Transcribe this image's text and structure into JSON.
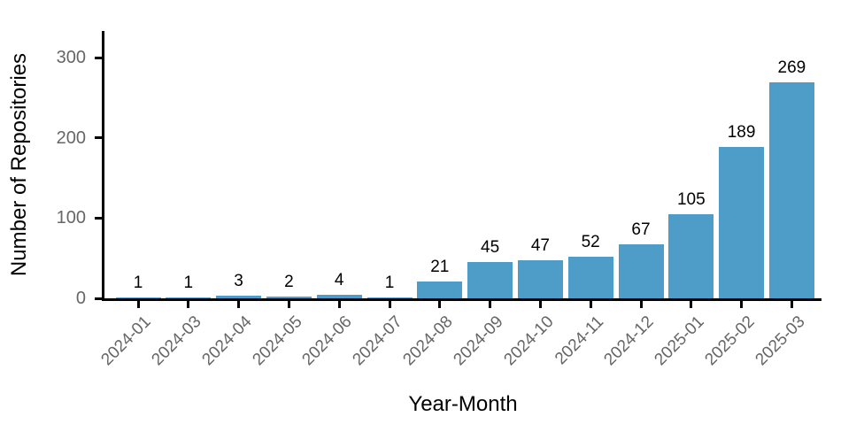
{
  "chart_data": {
    "type": "bar",
    "title": "",
    "xlabel": "Year-Month",
    "ylabel": "Number of Repositories",
    "categories": [
      "2024-01",
      "2024-03",
      "2024-04",
      "2024-05",
      "2024-06",
      "2024-07",
      "2024-08",
      "2024-09",
      "2024-10",
      "2024-11",
      "2024-12",
      "2025-01",
      "2025-02",
      "2025-03"
    ],
    "values": [
      1,
      1,
      3,
      2,
      4,
      1,
      21,
      45,
      47,
      52,
      67,
      105,
      189,
      269
    ],
    "value_labels": [
      "1",
      "1",
      "3",
      "2",
      "4",
      "1",
      "21",
      "45",
      "47",
      "52",
      "67",
      "105",
      "189",
      "269"
    ],
    "y_ticks": [
      0,
      100,
      200,
      300
    ],
    "y_tick_labels": [
      "0",
      "100",
      "200",
      "300"
    ],
    "ylim": [
      0,
      333
    ],
    "grid": false,
    "legend": false,
    "x_tick_rotation_deg": 45,
    "colors": {
      "bar_fill": "#4E9CC8",
      "axis": "#000000",
      "tick_label": "#666666",
      "value_label": "#000000",
      "background": "#ffffff"
    }
  }
}
